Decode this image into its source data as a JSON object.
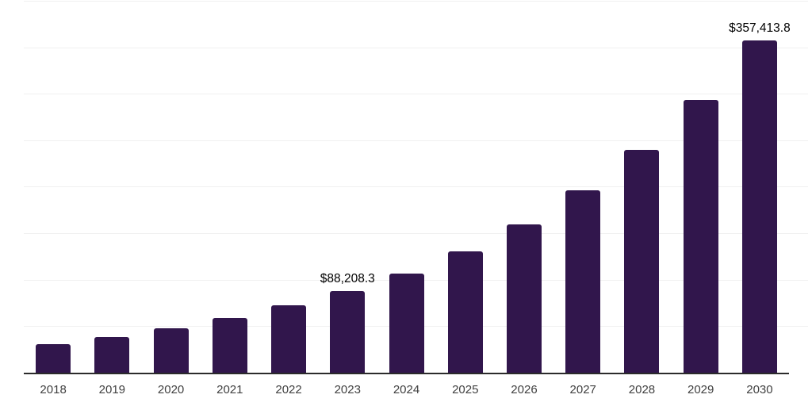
{
  "chart_data": {
    "type": "bar",
    "title": "",
    "xlabel": "",
    "ylabel": "",
    "categories": [
      "2018",
      "2019",
      "2020",
      "2021",
      "2022",
      "2023",
      "2024",
      "2025",
      "2026",
      "2027",
      "2028",
      "2029",
      "2030"
    ],
    "values": [
      30700,
      38400,
      48000,
      58800,
      72500,
      88208.3,
      106600,
      130500,
      159500,
      196200,
      239700,
      293400,
      357413.8
    ],
    "value_labels": [
      "",
      "",
      "",
      "",
      "",
      "$88,208.3",
      "",
      "",
      "",
      "",
      "",
      "",
      "$357,413.8"
    ],
    "ylim": [
      0,
      400000
    ],
    "gridline_step": 50000,
    "grid": "horizontal",
    "legend": false,
    "colors": {
      "bar": "#31164C",
      "axis": "#2B2B2B",
      "gridline": "#F0F0F0",
      "tick_label": "#3F3F3F",
      "value_label": "#000000",
      "background": "#FFFFFF"
    }
  }
}
